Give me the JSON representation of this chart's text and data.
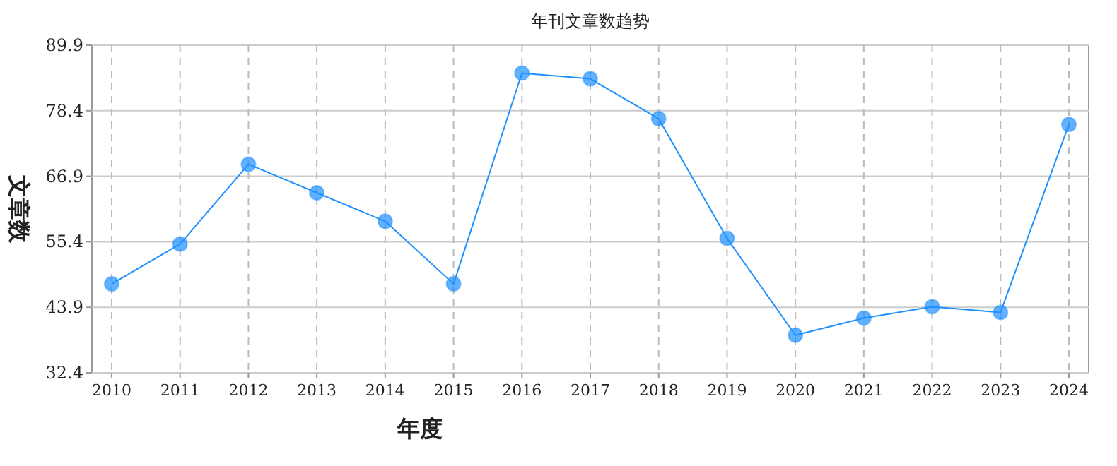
{
  "chart_data": {
    "type": "line",
    "title": "年刊文章数趋势",
    "xlabel": "年度",
    "ylabel": "文章数",
    "categories": [
      "2010",
      "2011",
      "2012",
      "2013",
      "2014",
      "2015",
      "2016",
      "2017",
      "2018",
      "2019",
      "2020",
      "2021",
      "2022",
      "2023",
      "2024"
    ],
    "series": [
      {
        "color": "#1e90ff",
        "values": [
          48,
          55,
          69,
          64,
          59,
          48,
          85,
          84,
          77,
          56,
          39,
          42,
          44,
          43,
          76
        ]
      }
    ],
    "ylim": [
      32.4,
      89.9
    ],
    "yticks": [
      32.4,
      43.9,
      55.4,
      66.9,
      78.4,
      89.9
    ],
    "grid": true,
    "marker": "circle",
    "line_style": "solid"
  }
}
